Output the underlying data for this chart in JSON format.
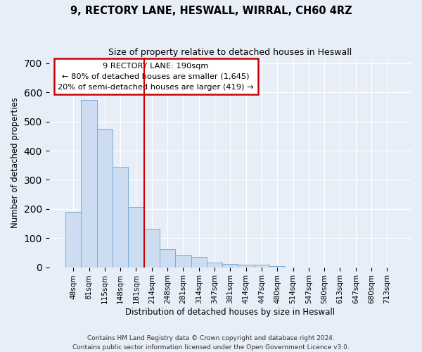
{
  "title_line1": "9, RECTORY LANE, HESWALL, WIRRAL, CH60 4RZ",
  "title_line2": "Size of property relative to detached houses in Heswall",
  "xlabel": "Distribution of detached houses by size in Heswall",
  "ylabel": "Number of detached properties",
  "bar_labels": [
    "48sqm",
    "81sqm",
    "115sqm",
    "148sqm",
    "181sqm",
    "214sqm",
    "248sqm",
    "281sqm",
    "314sqm",
    "347sqm",
    "381sqm",
    "414sqm",
    "447sqm",
    "480sqm",
    "514sqm",
    "547sqm",
    "580sqm",
    "613sqm",
    "647sqm",
    "680sqm",
    "713sqm"
  ],
  "bar_values": [
    190,
    575,
    475,
    345,
    207,
    133,
    62,
    42,
    35,
    15,
    10,
    8,
    9,
    5,
    0,
    0,
    0,
    0,
    0,
    0,
    0
  ],
  "bar_color": "#ccddf2",
  "bar_edge_color": "#7aadd4",
  "vline_x": 4.5,
  "vline_color": "#cc0000",
  "annotation_line1": "9 RECTORY LANE: 190sqm",
  "annotation_line2": "← 80% of detached houses are smaller (1,645)",
  "annotation_line3": "20% of semi-detached houses are larger (419) →",
  "annotation_box_facecolor": "#ffffff",
  "annotation_box_edgecolor": "#cc0000",
  "ylim": [
    0,
    720
  ],
  "yticks": [
    0,
    100,
    200,
    300,
    400,
    500,
    600,
    700
  ],
  "footer_line1": "Contains HM Land Registry data © Crown copyright and database right 2024.",
  "footer_line2": "Contains public sector information licensed under the Open Government Licence v3.0.",
  "background_color": "#e8eef8",
  "grid_color": "#ffffff"
}
